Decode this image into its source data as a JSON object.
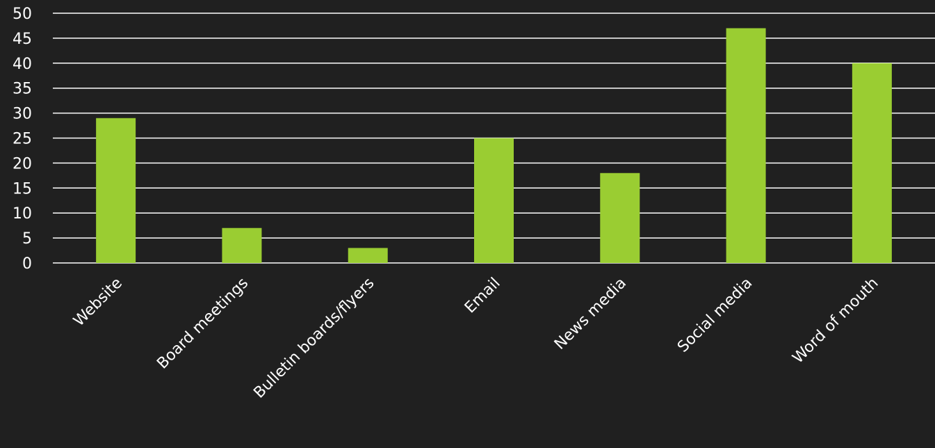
{
  "chart_data": {
    "type": "bar",
    "title": "",
    "xlabel": "",
    "ylabel": "",
    "categories": [
      "Website",
      "Board meetings",
      "Bulletin boards/flyers",
      "Email",
      "News media",
      "Social media",
      "Word of mouth"
    ],
    "values": [
      29,
      7,
      3,
      25,
      18,
      47,
      40
    ],
    "ylim": [
      0,
      50
    ],
    "yticks": [
      0,
      5,
      10,
      15,
      20,
      25,
      30,
      35,
      40,
      45,
      50
    ],
    "grid": true,
    "legend": "none",
    "colors": {
      "background": "#202020",
      "bar": "#9ACD32",
      "gridline": "#ffffff",
      "text": "#ffffff"
    }
  }
}
